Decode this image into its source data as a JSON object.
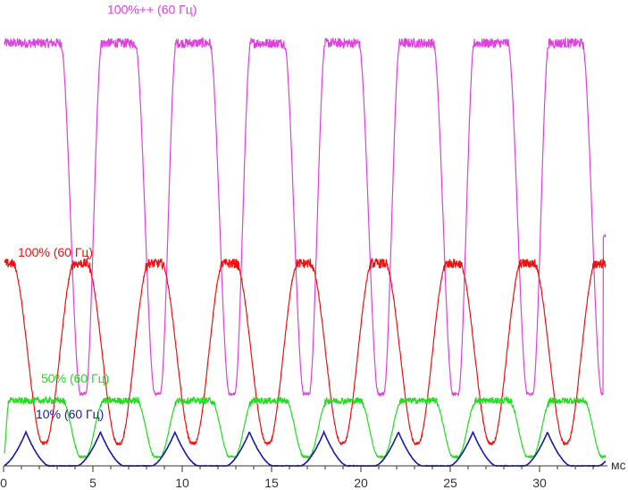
{
  "chart_data": {
    "type": "line",
    "title": "",
    "xlabel": "мс",
    "ylabel": "",
    "xlim": [
      0,
      33.8
    ],
    "ylim": [
      0,
      100
    ],
    "x_ticks": [
      0,
      5,
      10,
      15,
      20,
      25,
      30
    ],
    "x_tick_labels": [
      "0",
      "5",
      "10",
      "15",
      "20",
      "25",
      "30"
    ],
    "grid": false,
    "legend": "inline labels",
    "period_ms": 4.17,
    "series": [
      {
        "name": "100%++ (60 Гц)",
        "color": "#e040e0",
        "high": 94,
        "low": 16,
        "rise_ms": 0.9,
        "fall_ms": 1.1,
        "low_hold_ms": 0.3,
        "first_fall_ms": 3.2,
        "end_value": 51
      },
      {
        "name": "100% (60 Гц)",
        "color": "#ee1111",
        "high": 45,
        "low": 5,
        "rise_ms": 1.6,
        "fall_ms": 1.7,
        "low_hold_ms": 0.15,
        "first_fall_ms": 0.5,
        "end_value": 45
      },
      {
        "name": "50% (60 Гц)",
        "color": "#22dd22",
        "high": 14.5,
        "low": 2,
        "rise_ms": 1.0,
        "fall_ms": 1.0,
        "low_hold_ms": 0.3,
        "first_fall_ms": 3.3,
        "end_value": 2.5
      },
      {
        "name": "10% (60 Гц)",
        "color": "#1a1ab0",
        "peak": 7.5,
        "base": 0,
        "peak_width_ms": 1.3,
        "first_peak_ms": 1.25
      }
    ]
  }
}
